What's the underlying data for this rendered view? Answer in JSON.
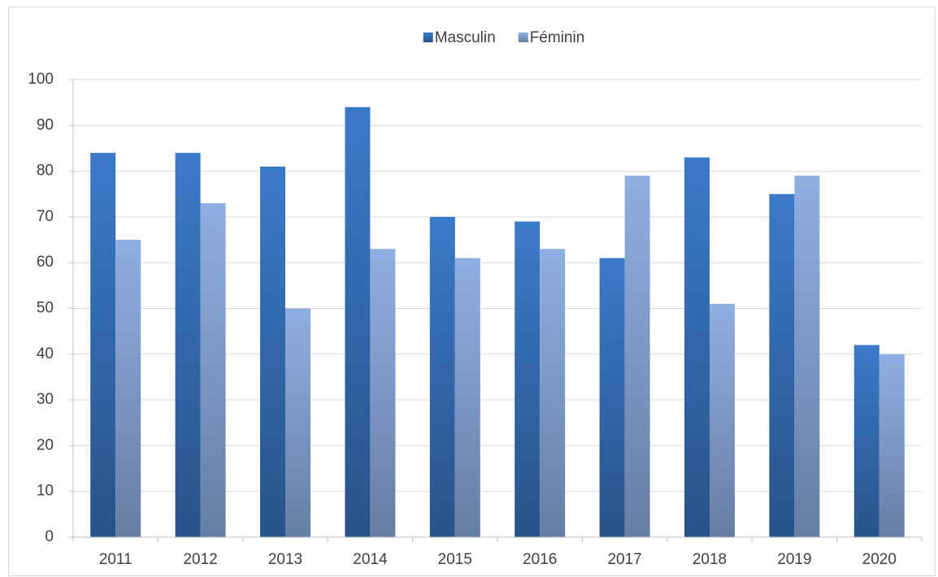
{
  "chart_data": {
    "type": "bar",
    "categories": [
      "2011",
      "2012",
      "2013",
      "2014",
      "2015",
      "2016",
      "2017",
      "2018",
      "2019",
      "2020"
    ],
    "series": [
      {
        "name": "Masculin",
        "color": "#3b7ac9",
        "values": [
          84,
          84,
          81,
          94,
          70,
          69,
          61,
          83,
          75,
          42
        ]
      },
      {
        "name": "Féminin",
        "color": "#8fafe2",
        "values": [
          65,
          73,
          50,
          63,
          61,
          63,
          79,
          51,
          79,
          40
        ]
      }
    ],
    "ylim": [
      0,
      100
    ],
    "yticks": [
      0,
      10,
      20,
      30,
      40,
      50,
      60,
      70,
      80,
      90,
      100
    ],
    "grid": true,
    "legend": "top"
  }
}
